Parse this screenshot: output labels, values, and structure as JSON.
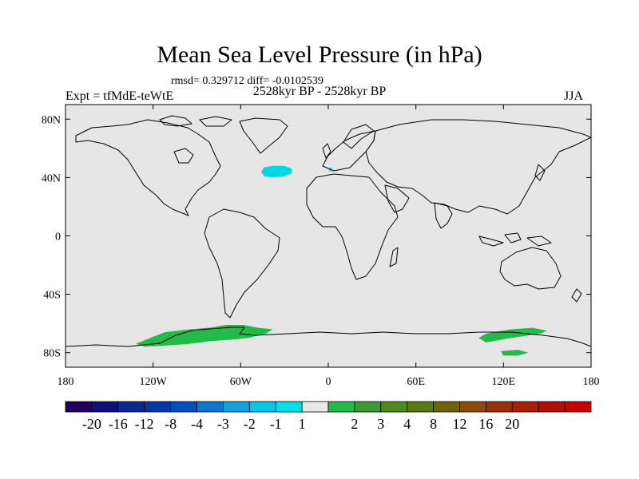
{
  "title": "Mean Sea Level Pressure (in hPa)",
  "stats": "rmsd= 0.329712 diff= -0.0102539",
  "period": "2528kyr BP - 2528kyr BP",
  "experiment": "Expt = tfMdE-teWtE",
  "season": "JJA",
  "colors": {
    "ocean_land": "#e6e6e6",
    "coast": "#000000",
    "negative_anomaly": "#00d8e8",
    "positive_anomaly": "#22bb48"
  },
  "chart_data": {
    "type": "heatmap",
    "projection": "cylindrical-equidistant",
    "x_axis": {
      "range": [
        -180,
        180
      ],
      "tick_values": [
        -180,
        -120,
        -60,
        0,
        60,
        120,
        180
      ],
      "tick_labels": [
        "180",
        "120W",
        "60W",
        "0",
        "60E",
        "120E",
        "180"
      ]
    },
    "y_axis": {
      "range": [
        -90,
        90
      ],
      "tick_values": [
        80,
        40,
        0,
        -40,
        -80
      ],
      "tick_labels": [
        "80N",
        "40N",
        "0",
        "40S",
        "80S"
      ]
    },
    "colorbar": {
      "colors": [
        "#200060",
        "#10107a",
        "#0a2890",
        "#0038a8",
        "#0050bf",
        "#0a78d0",
        "#10a2d8",
        "#00c8e8",
        "#00e0e8",
        "#e8e8e8",
        "#22bb48",
        "#3c9a30",
        "#4e8a1e",
        "#5a7a10",
        "#6e6408",
        "#8a4c08",
        "#9a3208",
        "#a82008",
        "#b40c08",
        "#c80000"
      ],
      "labels": [
        "-20",
        "-16",
        "-12",
        "-8",
        "-4",
        "-3",
        "-2",
        "-1",
        "1",
        "2",
        "3",
        "4",
        "8",
        "12",
        "16",
        "20"
      ],
      "label_positions": [
        1,
        2,
        3,
        4,
        5,
        6,
        7,
        8,
        9,
        11,
        12,
        13,
        14,
        15,
        16,
        17
      ]
    },
    "regions": [
      {
        "name": "north-atlantic-low",
        "sign": "negative",
        "polygon": [
          [
            -44,
            47
          ],
          [
            -38,
            48
          ],
          [
            -30,
            48
          ],
          [
            -25,
            46
          ],
          [
            -25,
            43
          ],
          [
            -30,
            41
          ],
          [
            -38,
            40
          ],
          [
            -44,
            41
          ],
          [
            -46,
            44
          ]
        ]
      },
      {
        "name": "iberia-low",
        "sign": "negative",
        "polygon": [
          [
            0,
            46
          ],
          [
            2,
            47
          ],
          [
            3,
            45
          ],
          [
            1,
            44
          ]
        ]
      },
      {
        "name": "antarctic-high-west",
        "sign": "positive",
        "polygon": [
          [
            -112,
            -66
          ],
          [
            -95,
            -64
          ],
          [
            -82,
            -63
          ],
          [
            -70,
            -61
          ],
          [
            -58,
            -61
          ],
          [
            -48,
            -63
          ],
          [
            -38,
            -64
          ],
          [
            -43,
            -67
          ],
          [
            -55,
            -70
          ],
          [
            -65,
            -71
          ],
          [
            -80,
            -72
          ],
          [
            -95,
            -74
          ],
          [
            -110,
            -75
          ],
          [
            -125,
            -76
          ],
          [
            -132,
            -74
          ],
          [
            -122,
            -70
          ]
        ]
      },
      {
        "name": "antarctic-high-east",
        "sign": "positive",
        "polygon": [
          [
            108,
            -67
          ],
          [
            125,
            -64
          ],
          [
            140,
            -63
          ],
          [
            150,
            -65
          ],
          [
            145,
            -67
          ],
          [
            125,
            -70
          ],
          [
            108,
            -73
          ],
          [
            103,
            -70
          ]
        ]
      },
      {
        "name": "antarctic-high-east-south",
        "sign": "positive",
        "polygon": [
          [
            118,
            -79
          ],
          [
            130,
            -78
          ],
          [
            137,
            -80
          ],
          [
            130,
            -82
          ],
          [
            120,
            -82
          ]
        ]
      }
    ]
  }
}
